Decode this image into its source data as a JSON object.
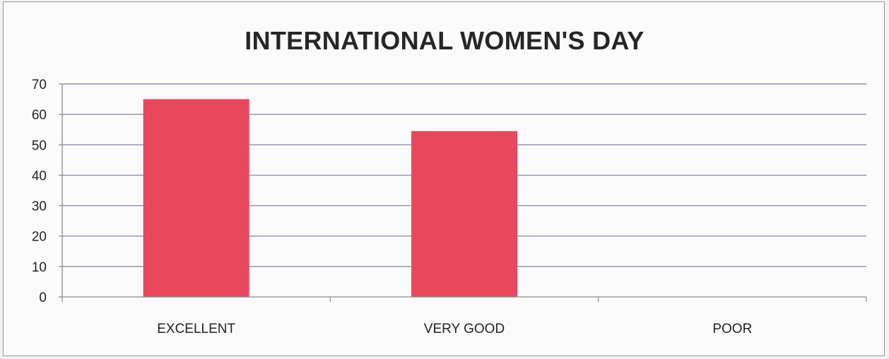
{
  "chart_data": {
    "type": "bar",
    "title": "INTERNATIONAL WOMEN'S DAY",
    "categories": [
      "EXCELLENT",
      "VERY GOOD",
      "POOR"
    ],
    "values": [
      65,
      54.5,
      0
    ],
    "ylim": [
      0,
      70
    ],
    "yticks": [
      0,
      10,
      20,
      30,
      40,
      50,
      60,
      70
    ],
    "grid": true,
    "legend": "none",
    "colors": {
      "bar": "#e8485e",
      "grid": "#8f8fa8",
      "axis": "#8a8a8a"
    }
  }
}
